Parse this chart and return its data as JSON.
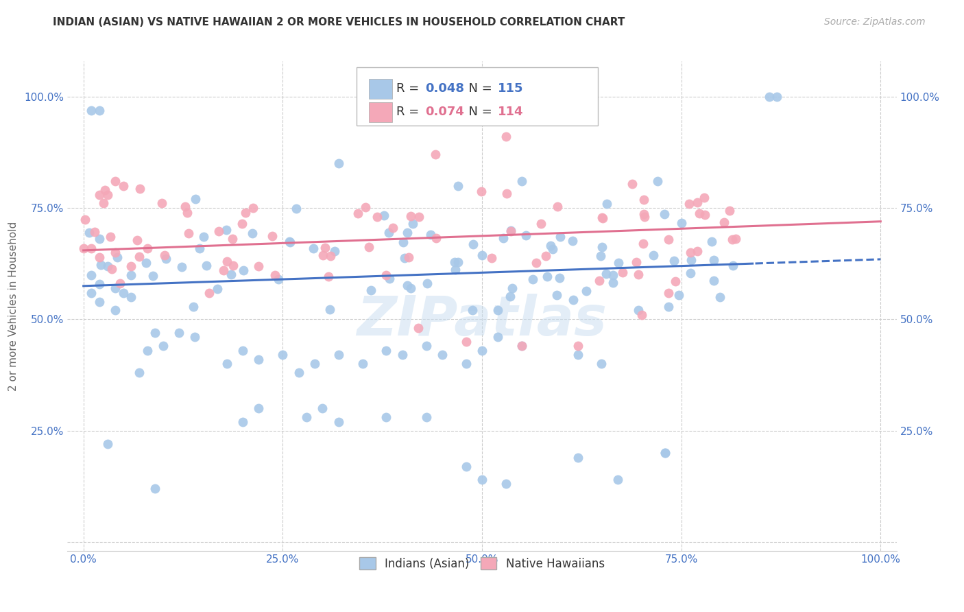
{
  "title": "INDIAN (ASIAN) VS NATIVE HAWAIIAN 2 OR MORE VEHICLES IN HOUSEHOLD CORRELATION CHART",
  "source": "Source: ZipAtlas.com",
  "ylabel": "2 or more Vehicles in Household",
  "r_indian": 0.048,
  "n_indian": 115,
  "r_hawaiian": 0.074,
  "n_hawaiian": 114,
  "xlim": [
    -0.02,
    1.02
  ],
  "ylim": [
    -0.02,
    1.08
  ],
  "xticks": [
    0,
    0.25,
    0.5,
    0.75,
    1.0
  ],
  "xticklabels": [
    "0.0%",
    "25.0%",
    "50.0%",
    "75.0%",
    "100.0%"
  ],
  "yticks": [
    0,
    0.25,
    0.5,
    0.75,
    1.0
  ],
  "yticklabels": [
    "",
    "25.0%",
    "50.0%",
    "75.0%",
    "100.0%"
  ],
  "color_indian": "#a8c8e8",
  "color_hawaiian": "#f4a8b8",
  "color_indian_line": "#4472c4",
  "color_hawaiian_line": "#e07090",
  "legend_label_indian": "Indians (Asian)",
  "legend_label_hawaiian": "Native Hawaiians",
  "watermark": "ZIPatlas",
  "background_color": "#ffffff",
  "grid_color": "#cccccc",
  "title_color": "#333333",
  "axis_tick_color": "#4472c4",
  "seed": 12345
}
